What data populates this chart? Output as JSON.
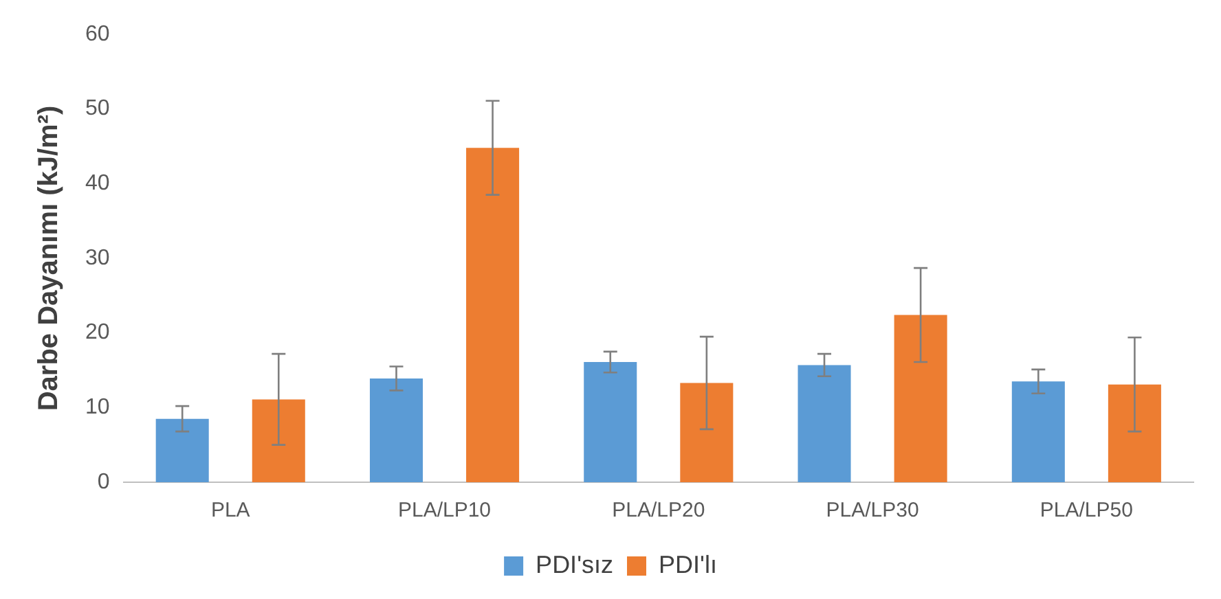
{
  "chart_data": {
    "type": "bar",
    "ylabel": "Darbe Dayanımı (kJ/m²)",
    "categories": [
      "PLA",
      "PLA/LP10",
      "PLA/LP20",
      "PLA/LP30",
      "PLA/LP50"
    ],
    "series": [
      {
        "name": "PDI'sız",
        "color": "#5b9bd5",
        "values": [
          8.5,
          13.9,
          16.1,
          15.7,
          13.5
        ],
        "errors": [
          1.7,
          1.6,
          1.4,
          1.5,
          1.6
        ]
      },
      {
        "name": "PDI'lı",
        "color": "#ed7d31",
        "values": [
          11.1,
          44.8,
          13.3,
          22.4,
          13.1
        ],
        "errors": [
          6.1,
          6.3,
          6.2,
          6.3,
          6.3
        ]
      }
    ],
    "ylim": [
      0,
      60
    ],
    "yticks": [
      0,
      10,
      20,
      30,
      40,
      50,
      60
    ],
    "grid": false,
    "legend": "bottom"
  }
}
